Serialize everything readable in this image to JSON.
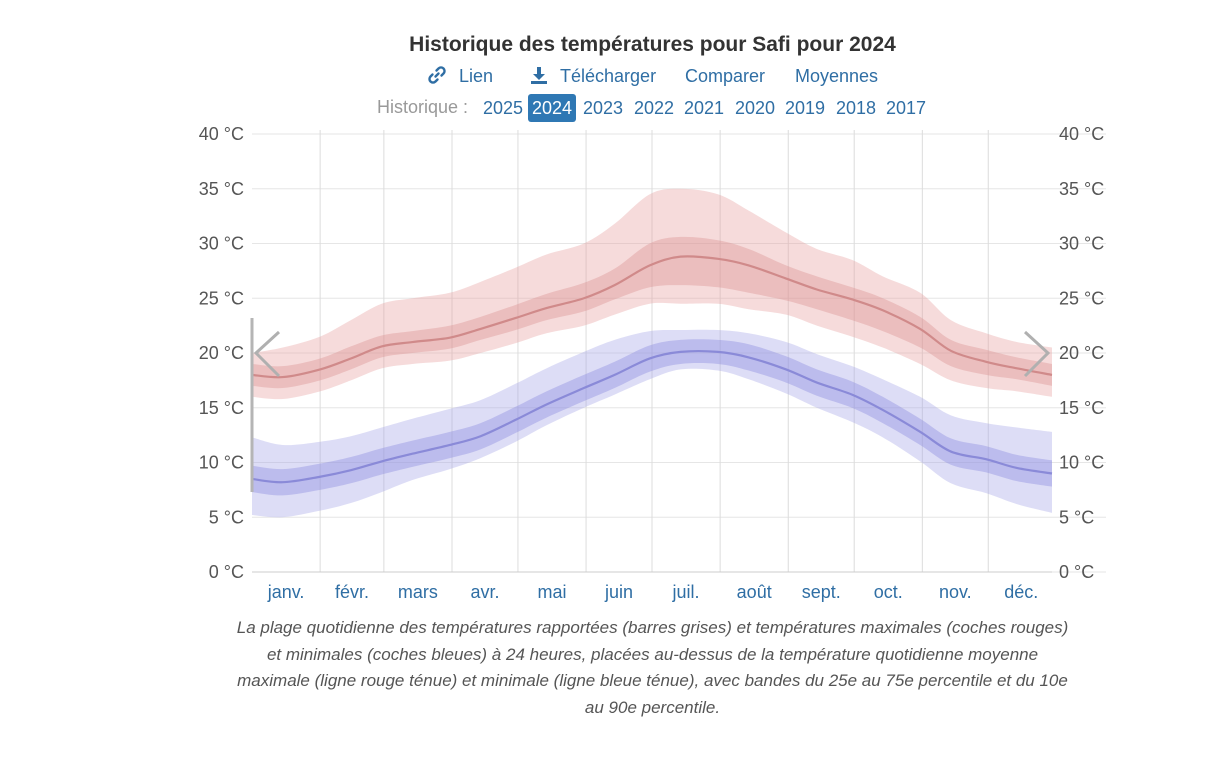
{
  "title": "Historique des températures pour Safi pour 2024",
  "actions": {
    "link": "Lien",
    "download": "Télécharger",
    "compare": "Comparer",
    "averages": "Moyennes",
    "link_icon": "link-icon",
    "download_icon": "download-icon"
  },
  "history": {
    "label": "Historique :",
    "years": [
      "2025",
      "2024",
      "2023",
      "2022",
      "2021",
      "2020",
      "2019",
      "2018",
      "2017"
    ],
    "active": "2024"
  },
  "caption": "La plage quotidienne des températures rapportées (barres grises) et températures maximales (coches rouges) et minimales (coches bleues) à 24 heures, placées au-dessus de la température quotidienne moyenne maximale (ligne rouge ténue) et minimale (ligne bleue ténue), avec bandes du 25e au 75e percentile et du 10e au 90e percentile.",
  "nav": {
    "prev_icon": "chevron-left-icon",
    "next_icon": "chevron-right-icon"
  },
  "chart_data": {
    "type": "area",
    "ylim": [
      0,
      40
    ],
    "yticks": [
      "0 °C",
      "5 °C",
      "10 °C",
      "15 °C",
      "20 °C",
      "25 °C",
      "30 °C",
      "35 °C",
      "40 °C"
    ],
    "months": [
      "janv.",
      "févr.",
      "mars",
      "avr.",
      "mai",
      "juin",
      "juil.",
      "août",
      "sept.",
      "oct.",
      "nov.",
      "déc."
    ],
    "x_days": [
      1,
      15,
      32,
      46,
      60,
      74,
      91,
      105,
      121,
      135,
      152,
      166,
      182,
      196,
      213,
      227,
      244,
      258,
      274,
      288,
      305,
      319,
      335,
      349,
      365
    ],
    "max_series": {
      "color": "#d08a8a",
      "mean": [
        18.0,
        17.8,
        18.5,
        19.5,
        20.6,
        21.0,
        21.4,
        22.2,
        23.2,
        24.1,
        25.0,
        26.2,
        28.0,
        28.8,
        28.6,
        28.0,
        26.8,
        25.8,
        24.9,
        23.9,
        22.2,
        20.2,
        19.2,
        18.6,
        18.0
      ],
      "p25": [
        17.0,
        16.8,
        17.5,
        18.5,
        19.6,
        20.0,
        20.4,
        21.2,
        22.1,
        23.0,
        23.8,
        24.9,
        26.0,
        26.2,
        26.0,
        25.5,
        24.8,
        24.0,
        23.0,
        22.0,
        20.5,
        18.8,
        18.0,
        17.6,
        17.0
      ],
      "p75": [
        19.0,
        18.8,
        19.5,
        20.6,
        21.6,
        22.0,
        22.5,
        23.3,
        24.4,
        25.4,
        26.4,
        27.7,
        30.0,
        30.6,
        30.3,
        29.5,
        28.0,
        27.0,
        26.0,
        25.0,
        23.3,
        21.2,
        20.3,
        19.6,
        19.0
      ],
      "p10": [
        16.0,
        15.8,
        16.5,
        17.5,
        18.6,
        19.0,
        19.3,
        20.0,
        20.9,
        21.8,
        22.5,
        23.5,
        24.5,
        24.5,
        24.5,
        24.0,
        23.5,
        22.5,
        21.5,
        20.5,
        19.0,
        17.5,
        16.8,
        16.5,
        16.0
      ],
      "p90": [
        20.0,
        20.5,
        21.5,
        23.0,
        24.5,
        25.0,
        25.5,
        26.5,
        27.8,
        29.0,
        30.0,
        31.8,
        34.5,
        35.0,
        34.5,
        33.0,
        31.0,
        29.5,
        28.5,
        27.0,
        25.5,
        23.0,
        21.8,
        21.0,
        20.5
      ]
    },
    "min_series": {
      "color": "#8a8ad8",
      "mean": [
        8.5,
        8.2,
        8.7,
        9.3,
        10.1,
        10.8,
        11.6,
        12.4,
        13.9,
        15.3,
        16.8,
        18.0,
        19.5,
        20.1,
        20.1,
        19.6,
        18.5,
        17.3,
        16.2,
        14.8,
        12.8,
        11.0,
        10.3,
        9.5,
        9.0
      ],
      "p25": [
        7.3,
        7.0,
        7.5,
        8.1,
        8.9,
        9.6,
        10.4,
        11.2,
        12.7,
        14.1,
        15.6,
        16.8,
        18.3,
        19.0,
        19.0,
        18.4,
        17.3,
        16.1,
        15.0,
        13.6,
        11.6,
        9.8,
        9.1,
        8.3,
        7.8
      ],
      "p75": [
        9.7,
        9.4,
        9.9,
        10.5,
        11.3,
        12.0,
        12.8,
        13.6,
        15.1,
        16.5,
        18.0,
        19.2,
        20.7,
        21.2,
        21.2,
        20.8,
        19.7,
        18.5,
        17.4,
        16.0,
        14.0,
        12.2,
        11.5,
        10.7,
        10.2
      ],
      "p10": [
        5.2,
        5.0,
        5.6,
        6.3,
        7.3,
        8.4,
        9.4,
        10.4,
        11.9,
        13.4,
        15.0,
        16.2,
        17.6,
        18.5,
        18.4,
        17.6,
        16.3,
        15.0,
        13.7,
        12.3,
        10.1,
        8.1,
        7.2,
        6.2,
        5.4
      ],
      "p90": [
        12.3,
        11.6,
        11.9,
        12.4,
        13.2,
        14.0,
        14.9,
        15.7,
        17.2,
        18.6,
        20.1,
        21.2,
        22.0,
        22.1,
        22.1,
        21.8,
        21.0,
        19.9,
        18.8,
        17.6,
        16.0,
        14.3,
        13.6,
        13.2,
        12.8
      ]
    }
  }
}
